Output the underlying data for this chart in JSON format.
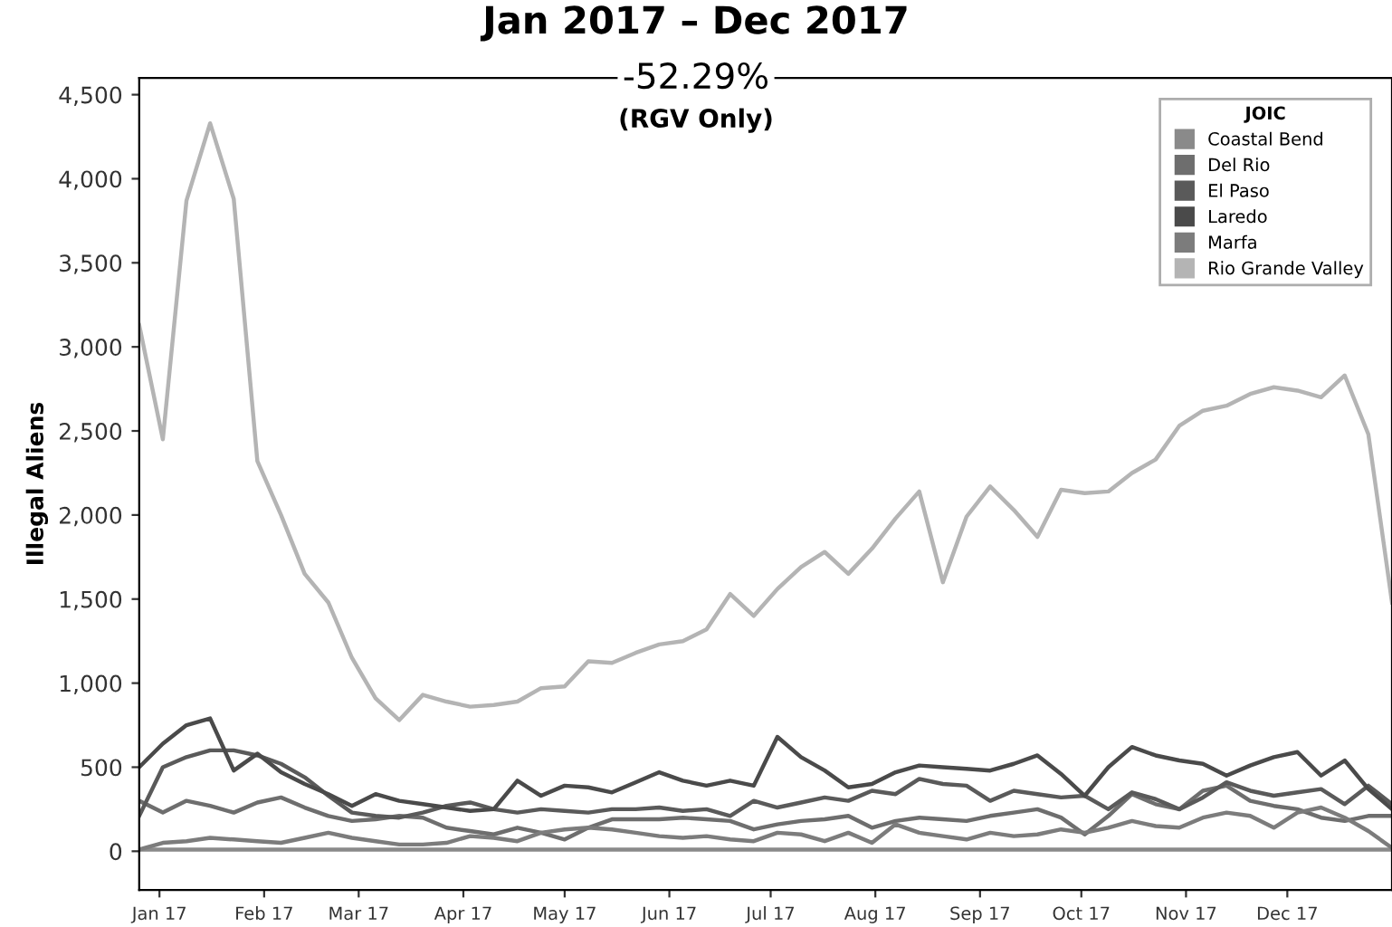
{
  "chart_data": {
    "type": "line",
    "title": "Jan 2017 – Dec 2017",
    "subtitle": "-52.29%",
    "annotations": [
      "(RGV Only)"
    ],
    "ylabel": "Illegal Aliens",
    "legend_title": "JOIC",
    "legend": "top right",
    "grid": false,
    "marker": "none",
    "line_style": "solid",
    "x": [
      "2016-12-26",
      "2017-01-02",
      "2017-01-09",
      "2017-01-16",
      "2017-01-23",
      "2017-01-30",
      "2017-02-06",
      "2017-02-13",
      "2017-02-20",
      "2017-02-27",
      "2017-03-06",
      "2017-03-13",
      "2017-03-20",
      "2017-03-27",
      "2017-04-03",
      "2017-04-10",
      "2017-04-17",
      "2017-04-24",
      "2017-05-01",
      "2017-05-08",
      "2017-05-15",
      "2017-05-22",
      "2017-05-29",
      "2017-06-05",
      "2017-06-12",
      "2017-06-19",
      "2017-06-26",
      "2017-07-03",
      "2017-07-10",
      "2017-07-17",
      "2017-07-24",
      "2017-07-31",
      "2017-08-07",
      "2017-08-14",
      "2017-08-21",
      "2017-08-28",
      "2017-09-04",
      "2017-09-11",
      "2017-09-18",
      "2017-09-25",
      "2017-10-02",
      "2017-10-09",
      "2017-10-16",
      "2017-10-23",
      "2017-10-30",
      "2017-11-06",
      "2017-11-13",
      "2017-11-20",
      "2017-11-27",
      "2017-12-04",
      "2017-12-11",
      "2017-12-18",
      "2017-12-25",
      "2018-01-01"
    ],
    "xlim": [
      "2016-12-26",
      "2018-01-01"
    ],
    "xticks": [
      {
        "value": "2017-01-01",
        "label": "Jan 17"
      },
      {
        "value": "2017-02-01",
        "label": "Feb 17"
      },
      {
        "value": "2017-03-01",
        "label": "Mar 17"
      },
      {
        "value": "2017-04-01",
        "label": "Apr 17"
      },
      {
        "value": "2017-05-01",
        "label": "May 17"
      },
      {
        "value": "2017-06-01",
        "label": "Jun 17"
      },
      {
        "value": "2017-07-01",
        "label": "Jul 17"
      },
      {
        "value": "2017-08-01",
        "label": "Aug 17"
      },
      {
        "value": "2017-09-01",
        "label": "Sep 17"
      },
      {
        "value": "2017-10-01",
        "label": "Oct 17"
      },
      {
        "value": "2017-11-01",
        "label": "Nov 17"
      },
      {
        "value": "2017-12-01",
        "label": "Dec 17"
      }
    ],
    "ylim": [
      -230,
      4600
    ],
    "yticks": [
      0,
      500,
      {
        "value": 1000,
        "label": "1,000"
      },
      {
        "value": 1500,
        "label": "1,500"
      },
      {
        "value": 2000,
        "label": "2,000"
      },
      {
        "value": 2500,
        "label": "2,500"
      },
      {
        "value": 3000,
        "label": "3,000"
      },
      {
        "value": 3500,
        "label": "3,500"
      },
      {
        "value": 4000,
        "label": "4,000"
      },
      {
        "value": 4500,
        "label": "4,500"
      }
    ],
    "series": [
      {
        "name": "Coastal Bend",
        "color": "#8a8a8a",
        "values": [
          10,
          10,
          10,
          10,
          10,
          10,
          10,
          10,
          10,
          10,
          10,
          10,
          10,
          10,
          10,
          10,
          10,
          10,
          10,
          10,
          10,
          10,
          10,
          10,
          10,
          10,
          10,
          10,
          10,
          10,
          10,
          10,
          10,
          10,
          10,
          10,
          10,
          10,
          10,
          10,
          10,
          10,
          10,
          10,
          10,
          10,
          10,
          10,
          10,
          10,
          10,
          10,
          10,
          10
        ]
      },
      {
        "name": "Del Rio",
        "color": "#6e6e6e",
        "values": [
          300,
          230,
          300,
          270,
          230,
          290,
          320,
          260,
          210,
          180,
          190,
          210,
          200,
          140,
          120,
          100,
          140,
          110,
          70,
          140,
          190,
          190,
          190,
          200,
          190,
          180,
          130,
          160,
          180,
          190,
          210,
          140,
          180,
          200,
          190,
          180,
          210,
          230,
          250,
          200,
          100,
          210,
          340,
          280,
          250,
          360,
          390,
          300,
          270,
          250,
          200,
          180,
          210,
          210
        ]
      },
      {
        "name": "El Paso",
        "color": "#5a5a5a",
        "values": [
          210,
          500,
          560,
          600,
          600,
          570,
          520,
          440,
          330,
          230,
          210,
          200,
          230,
          270,
          290,
          250,
          230,
          250,
          240,
          230,
          250,
          250,
          260,
          240,
          250,
          210,
          300,
          260,
          290,
          320,
          300,
          360,
          340,
          430,
          400,
          390,
          300,
          360,
          340,
          320,
          330,
          250,
          350,
          310,
          250,
          320,
          410,
          360,
          330,
          350,
          370,
          280,
          390,
          280
        ]
      },
      {
        "name": "Laredo",
        "color": "#4a4a4a",
        "values": [
          500,
          640,
          750,
          790,
          480,
          580,
          470,
          400,
          340,
          270,
          340,
          300,
          280,
          260,
          240,
          250,
          420,
          330,
          390,
          380,
          350,
          410,
          470,
          420,
          390,
          420,
          390,
          680,
          560,
          480,
          380,
          400,
          470,
          510,
          500,
          490,
          480,
          520,
          570,
          460,
          330,
          500,
          620,
          570,
          540,
          520,
          450,
          510,
          560,
          590,
          450,
          540,
          370,
          250
        ]
      },
      {
        "name": "Marfa",
        "color": "#7c7c7c",
        "values": [
          10,
          50,
          60,
          80,
          70,
          60,
          50,
          80,
          110,
          80,
          60,
          40,
          40,
          50,
          90,
          80,
          60,
          110,
          130,
          140,
          130,
          110,
          90,
          80,
          90,
          70,
          60,
          110,
          100,
          60,
          110,
          50,
          160,
          110,
          90,
          70,
          110,
          90,
          100,
          130,
          110,
          140,
          180,
          150,
          140,
          200,
          230,
          210,
          140,
          230,
          260,
          200,
          120,
          20
        ]
      },
      {
        "name": "Rio Grande Valley",
        "color": "#b4b4b4",
        "values": [
          3130,
          2450,
          3870,
          4330,
          3880,
          2320,
          2000,
          1650,
          1480,
          1150,
          910,
          780,
          930,
          890,
          860,
          870,
          890,
          970,
          980,
          1130,
          1120,
          1180,
          1230,
          1250,
          1320,
          1530,
          1400,
          1560,
          1690,
          1780,
          1650,
          1800,
          1980,
          2140,
          1600,
          1990,
          2170,
          2030,
          1870,
          2150,
          2130,
          2140,
          2250,
          2330,
          2530,
          2620,
          2650,
          2720,
          2760,
          2740,
          2700,
          2830,
          2480,
          1480
        ]
      }
    ]
  }
}
